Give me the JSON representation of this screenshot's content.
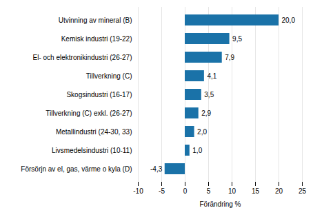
{
  "chart_data": {
    "type": "bar",
    "orientation": "horizontal",
    "categories": [
      "Utvinning av mineral (B)",
      "Kemisk industri (19-22)",
      "El- och elektronikindustri (26-27)",
      "Tillverkning (C)",
      "Skogsindustri (16-17)",
      "Tillverkning (C) exkl. (26-27)",
      "Metallindustri (24-30, 33)",
      "Livsmedelsindustri (10-11)",
      "Försörjn av el, gas, värme o kyla (D)"
    ],
    "values": [
      20.0,
      9.5,
      7.9,
      4.1,
      3.5,
      2.9,
      2.0,
      1.0,
      -4.3
    ],
    "value_labels": [
      "20,0",
      "9,5",
      "7,9",
      "4,1",
      "3,5",
      "2,9",
      "2,0",
      "1,0",
      "-4,3"
    ],
    "data_labels": true,
    "color": "#1a72a8",
    "xlabel": "Förändring %",
    "xlim": [
      -10,
      25
    ],
    "xticks": [
      -10,
      -5,
      0,
      5,
      10,
      15,
      20,
      25
    ],
    "grid": true
  }
}
